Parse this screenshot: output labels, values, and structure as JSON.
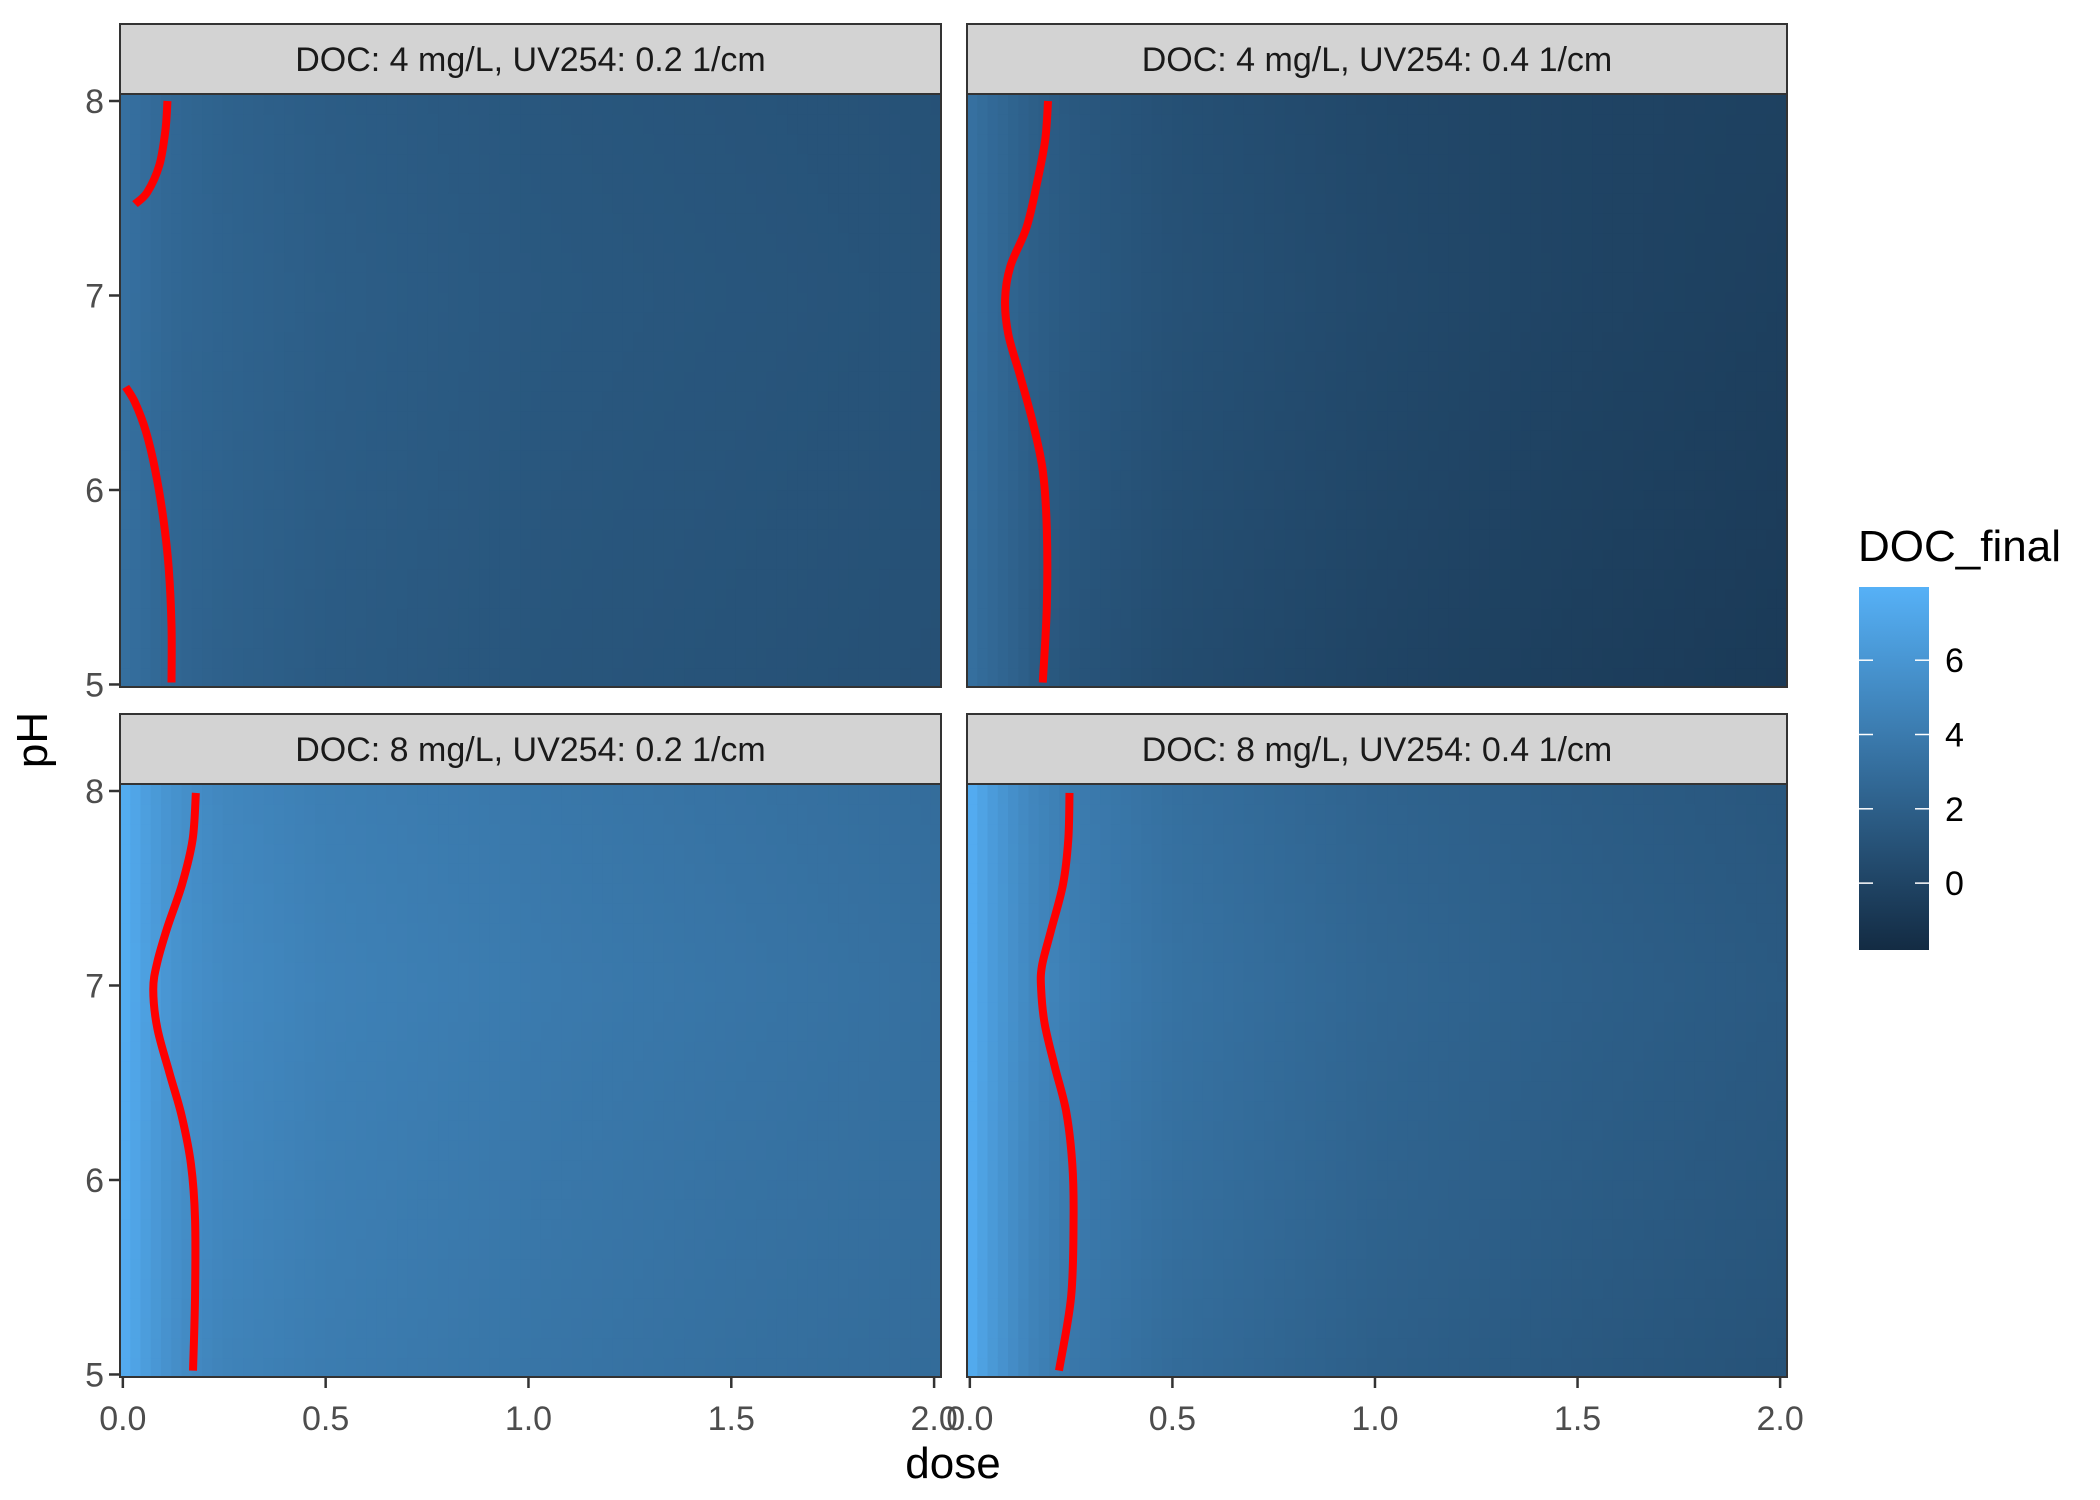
{
  "chart_data": {
    "type": "heatmap",
    "xlabel": "dose",
    "ylabel": "pH",
    "xlim": [
      -0.007,
      2.017
    ],
    "ylim": [
      4.987,
      8.036
    ],
    "x_ticks": [
      "0.0",
      "0.5",
      "1.0",
      "1.5",
      "2.0"
    ],
    "y_ticks": [
      "5",
      "6",
      "7",
      "8"
    ],
    "grid": false,
    "legend": {
      "title": "DOC_final",
      "placement": "right",
      "ticks": [
        "0",
        "2",
        "4",
        "6"
      ],
      "limits": [
        -1.8,
        7.97
      ],
      "low_color": "#132B43",
      "high_color": "#56B1F7"
    },
    "contour_color": "#FF0000",
    "grid_dose": [
      0,
      0.05,
      0.1,
      0.15,
      0.25,
      0.5,
      1,
      1.5,
      2
    ],
    "grid_pH": [
      5,
      6,
      7,
      8
    ],
    "panels": [
      {
        "label": "DOC: 4 mg/L, UV254: 0.2 1/cm",
        "values": [
          [
            3.2,
            2.9,
            2.6,
            2.4,
            2.1,
            1.7,
            1.3,
            1.1,
            0.9
          ],
          [
            3.2,
            2.9,
            2.6,
            2.4,
            2.2,
            1.8,
            1.4,
            1.2,
            1.0
          ],
          [
            3.3,
            3.0,
            2.7,
            2.5,
            2.3,
            1.9,
            1.5,
            1.3,
            1.1
          ],
          [
            3.3,
            3.0,
            2.7,
            2.5,
            2.2,
            1.8,
            1.4,
            1.2,
            1.0
          ]
        ],
        "contours": [
          [
            [
              0.11,
              8.0
            ],
            [
              0.105,
              7.85
            ],
            [
              0.09,
              7.67
            ],
            [
              0.06,
              7.53
            ],
            [
              0.03,
              7.47
            ]
          ],
          [
            [
              0.007,
              6.53
            ],
            [
              0.03,
              6.45
            ],
            [
              0.057,
              6.3
            ],
            [
              0.08,
              6.1
            ],
            [
              0.1,
              5.85
            ],
            [
              0.113,
              5.6
            ],
            [
              0.12,
              5.3
            ],
            [
              0.12,
              5.01
            ]
          ]
        ]
      },
      {
        "label": "DOC: 4 mg/L, UV254: 0.4 1/cm",
        "values": [
          [
            3.2,
            2.7,
            2.3,
            1.8,
            1.2,
            0.6,
            0.0,
            -0.4,
            -0.7
          ],
          [
            3.2,
            2.7,
            2.3,
            1.9,
            1.4,
            0.8,
            0.2,
            -0.2,
            -0.5
          ],
          [
            3.3,
            2.8,
            2.4,
            2.0,
            1.6,
            1.0,
            0.4,
            0.0,
            -0.3
          ],
          [
            3.3,
            2.8,
            2.4,
            2.0,
            1.5,
            0.9,
            0.3,
            0.0,
            -0.2
          ]
        ],
        "contours": [
          [
            [
              0.193,
              8.0
            ],
            [
              0.186,
              7.8
            ],
            [
              0.166,
              7.58
            ],
            [
              0.14,
              7.35
            ],
            [
              0.1,
              7.15
            ],
            [
              0.087,
              6.98
            ],
            [
              0.095,
              6.8
            ],
            [
              0.125,
              6.58
            ],
            [
              0.155,
              6.35
            ],
            [
              0.18,
              6.1
            ],
            [
              0.19,
              5.8
            ],
            [
              0.19,
              5.4
            ],
            [
              0.18,
              5.01
            ]
          ]
        ]
      },
      {
        "label": "DOC: 8 mg/L, UV254: 0.2 1/cm",
        "values": [
          [
            7.6,
            6.6,
            5.8,
            5.2,
            4.6,
            4.1,
            3.6,
            3.2,
            2.9
          ],
          [
            7.6,
            6.7,
            5.9,
            5.4,
            4.9,
            4.3,
            3.8,
            3.4,
            3.1
          ],
          [
            7.7,
            6.8,
            6.1,
            5.6,
            5.1,
            4.5,
            4.0,
            3.6,
            3.2
          ],
          [
            7.7,
            6.7,
            6.0,
            5.5,
            4.9,
            4.3,
            3.8,
            3.4,
            3.0
          ]
        ],
        "contours": [
          [
            [
              0.18,
              7.99
            ],
            [
              0.172,
              7.75
            ],
            [
              0.146,
              7.52
            ],
            [
              0.11,
              7.3
            ],
            [
              0.085,
              7.12
            ],
            [
              0.075,
              6.98
            ],
            [
              0.085,
              6.78
            ],
            [
              0.115,
              6.55
            ],
            [
              0.145,
              6.33
            ],
            [
              0.168,
              6.08
            ],
            [
              0.178,
              5.8
            ],
            [
              0.178,
              5.4
            ],
            [
              0.173,
              5.02
            ]
          ]
        ]
      },
      {
        "label": "DOC: 8 mg/L, UV254: 0.4 1/cm",
        "values": [
          [
            7.6,
            6.3,
            5.4,
            4.6,
            3.8,
            2.9,
            2.0,
            1.5,
            1.1
          ],
          [
            7.6,
            6.4,
            5.5,
            4.8,
            4.0,
            3.2,
            2.3,
            1.8,
            1.4
          ],
          [
            7.7,
            6.5,
            5.7,
            5.0,
            4.3,
            3.4,
            2.5,
            2.0,
            1.6
          ],
          [
            7.7,
            6.5,
            5.6,
            4.9,
            4.1,
            3.2,
            2.3,
            1.8,
            1.4
          ]
        ],
        "contours": [
          [
            [
              0.246,
              7.99
            ],
            [
              0.243,
              7.75
            ],
            [
              0.23,
              7.52
            ],
            [
              0.2,
              7.28
            ],
            [
              0.178,
              7.1
            ],
            [
              0.176,
              6.98
            ],
            [
              0.185,
              6.8
            ],
            [
              0.21,
              6.58
            ],
            [
              0.238,
              6.35
            ],
            [
              0.253,
              6.08
            ],
            [
              0.256,
              5.8
            ],
            [
              0.25,
              5.4
            ],
            [
              0.22,
              5.02
            ]
          ]
        ]
      }
    ]
  }
}
